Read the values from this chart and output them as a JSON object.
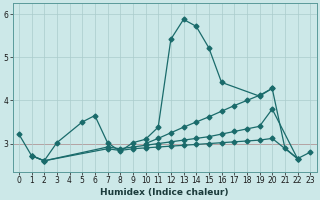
{
  "xlabel": "Humidex (Indice chaleur)",
  "bg_color": "#cce8e8",
  "grid_color": "#aacccc",
  "line_color": "#1a6b6b",
  "red_line_color": "#cc4444",
  "x_values": [
    0,
    1,
    2,
    3,
    4,
    5,
    6,
    7,
    8,
    9,
    10,
    11,
    12,
    13,
    14,
    15,
    16,
    17,
    18,
    19,
    20,
    21,
    22,
    23
  ],
  "series1_x": [
    0,
    1,
    2,
    3,
    5,
    6,
    7,
    8,
    9,
    10,
    11,
    12,
    13,
    14,
    15,
    16,
    19,
    20,
    21,
    22,
    23
  ],
  "series1_y": [
    3.22,
    2.72,
    2.6,
    3.02,
    3.5,
    3.65,
    3.02,
    2.82,
    3.02,
    3.1,
    3.38,
    5.42,
    5.88,
    5.72,
    5.22,
    4.42,
    4.1,
    4.28,
    2.9,
    2.65,
    2.8
  ],
  "series2_x": [
    1,
    2,
    7,
    8,
    9,
    10,
    11,
    12,
    13,
    14,
    15,
    16,
    17,
    18,
    19,
    20,
    22
  ],
  "series2_y": [
    2.72,
    2.6,
    2.92,
    2.88,
    2.92,
    2.96,
    3.0,
    3.04,
    3.08,
    3.12,
    3.16,
    3.22,
    3.28,
    3.34,
    3.4,
    3.8,
    2.65
  ],
  "series3_x": [
    1,
    2,
    7,
    8,
    9,
    10,
    11,
    12,
    13,
    14,
    15,
    16,
    17,
    18,
    19,
    20,
    22
  ],
  "series3_y": [
    2.72,
    2.6,
    2.88,
    2.84,
    2.88,
    2.9,
    2.92,
    2.94,
    2.96,
    2.98,
    3.0,
    3.02,
    3.04,
    3.06,
    3.08,
    3.12,
    2.65
  ],
  "series4_x": [
    10,
    11,
    12,
    13,
    14,
    15,
    16,
    17,
    18,
    19,
    20
  ],
  "series4_y": [
    3.0,
    3.12,
    3.25,
    3.38,
    3.5,
    3.62,
    3.75,
    3.88,
    4.0,
    4.12,
    4.28
  ],
  "ylim": [
    2.35,
    6.25
  ],
  "yticks": [
    3,
    4,
    5,
    6
  ],
  "xlim": [
    -0.5,
    23.5
  ],
  "red_y": 3.0
}
